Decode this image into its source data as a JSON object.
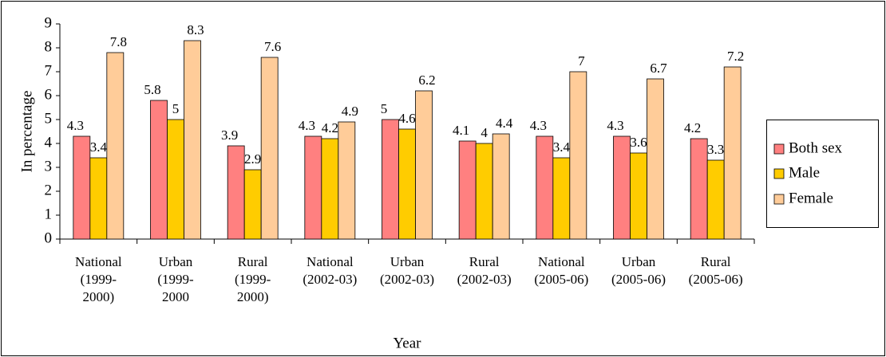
{
  "chart_data": {
    "type": "bar",
    "categories": [
      "National\n(1999-\n2000)",
      "Urban\n(1999-\n2000",
      "Rural\n(1999-\n2000)",
      "National\n(2002-03)",
      "Urban\n(2002-03)",
      "Rural\n(2002-03)",
      "National\n(2005-06)",
      "Urban\n(2005-06)",
      "Rural\n(2005-06)"
    ],
    "series": [
      {
        "name": "Both sex",
        "color": "#ff8080",
        "values": [
          4.3,
          5.8,
          3.9,
          4.3,
          5,
          4.1,
          4.3,
          4.3,
          4.2
        ]
      },
      {
        "name": "Male",
        "color": "#ffcc00",
        "values": [
          3.4,
          5,
          2.9,
          4.2,
          4.6,
          4,
          3.4,
          3.6,
          3.3
        ]
      },
      {
        "name": "Female",
        "color": "#ffcc99",
        "values": [
          7.8,
          8.3,
          7.6,
          4.9,
          6.2,
          4.4,
          7,
          6.7,
          7.2
        ]
      }
    ],
    "ylim": [
      0,
      9
    ],
    "yticks": [
      0,
      1,
      2,
      3,
      4,
      5,
      6,
      7,
      8,
      9
    ],
    "y_label": "In percentage",
    "x_label": "Year",
    "legend": "right"
  }
}
